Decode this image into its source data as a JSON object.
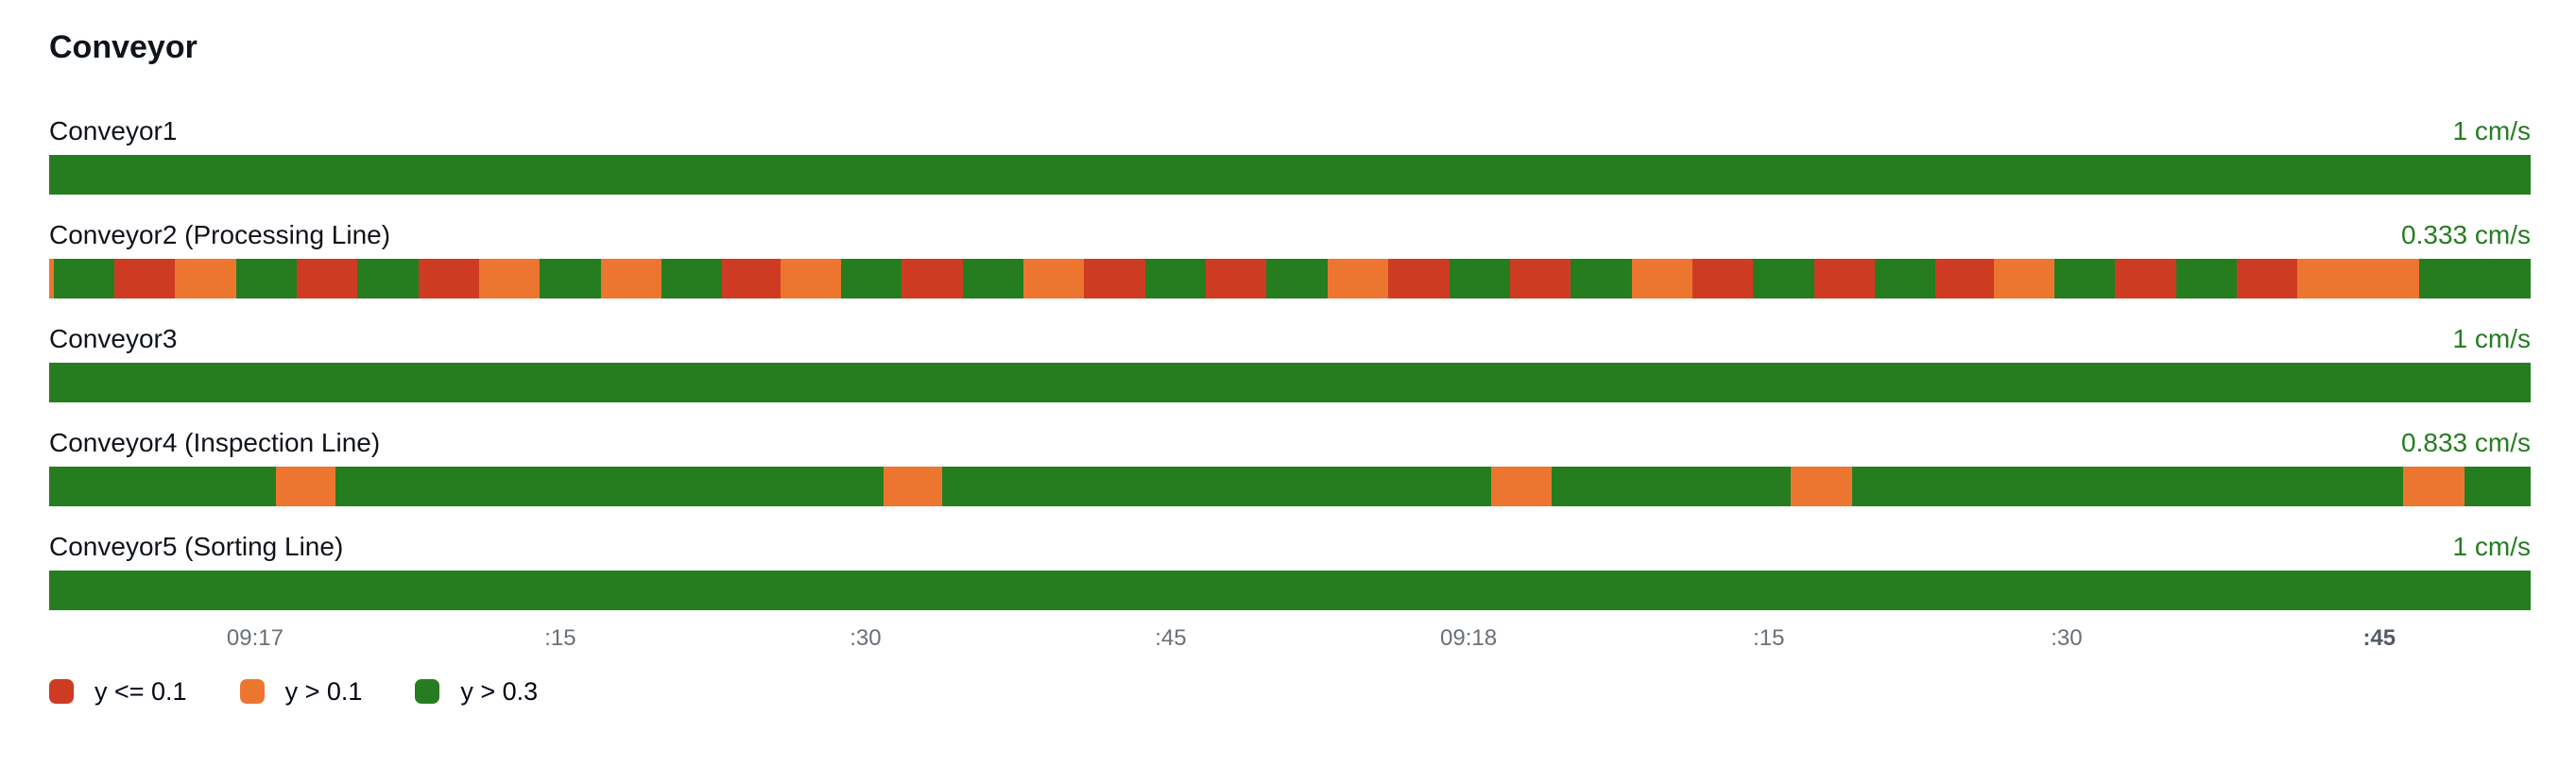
{
  "colors": {
    "green": "#267d20",
    "orange": "#ec7630",
    "red": "#ce3b23",
    "value_text": "#267d20",
    "axis_text": "#687078",
    "title_text": "#0f141a"
  },
  "chart_data": {
    "type": "heatmap",
    "title": "Conveyor",
    "subtitle": "",
    "unit": "cm/s",
    "legend_position": "bottom-left",
    "x_axis": {
      "resolution_seconds": 3,
      "ticks": [
        {
          "label": "09:17",
          "pos": 8.3,
          "bold": false
        },
        {
          "label": ":15",
          "pos": 20.6,
          "bold": false
        },
        {
          "label": ":30",
          "pos": 32.9,
          "bold": false
        },
        {
          "label": ":45",
          "pos": 45.2,
          "bold": false
        },
        {
          "label": "09:18",
          "pos": 57.2,
          "bold": false
        },
        {
          "label": ":15",
          "pos": 69.3,
          "bold": false
        },
        {
          "label": ":30",
          "pos": 81.3,
          "bold": false
        },
        {
          "label": ":45",
          "pos": 93.9,
          "bold": true
        }
      ]
    },
    "thresholds": [
      {
        "label": "y <= 0.1",
        "color": "red",
        "hex": "#ce3b23"
      },
      {
        "label": "y > 0.1",
        "color": "orange",
        "hex": "#ec7630"
      },
      {
        "label": "y > 0.3",
        "color": "green",
        "hex": "#267d20"
      }
    ],
    "rows": [
      {
        "label": "Conveyor1",
        "value": "1 cm/s",
        "segments": [
          {
            "c": "green",
            "w": 40.85
          }
        ]
      },
      {
        "label": "Conveyor2 (Processing Line)",
        "value": "0.333 cm/s",
        "segments": [
          {
            "c": "orange",
            "w": 0.07
          },
          {
            "c": "green",
            "w": 1
          },
          {
            "c": "red",
            "w": 1
          },
          {
            "c": "orange",
            "w": 1
          },
          {
            "c": "green",
            "w": 1
          },
          {
            "c": "red",
            "w": 1
          },
          {
            "c": "green",
            "w": 1
          },
          {
            "c": "red",
            "w": 1
          },
          {
            "c": "orange",
            "w": 1
          },
          {
            "c": "green",
            "w": 1
          },
          {
            "c": "orange",
            "w": 1
          },
          {
            "c": "green",
            "w": 1
          },
          {
            "c": "red",
            "w": 0.95
          },
          {
            "c": "orange",
            "w": 1
          },
          {
            "c": "green",
            "w": 1
          },
          {
            "c": "red",
            "w": 1
          },
          {
            "c": "green",
            "w": 1
          },
          {
            "c": "orange",
            "w": 1
          },
          {
            "c": "red",
            "w": 1
          },
          {
            "c": "green",
            "w": 1
          },
          {
            "c": "red",
            "w": 1
          },
          {
            "c": "green",
            "w": 1
          },
          {
            "c": "orange",
            "w": 1
          },
          {
            "c": "red",
            "w": 1
          },
          {
            "c": "green",
            "w": 1
          },
          {
            "c": "red",
            "w": 1
          },
          {
            "c": "green",
            "w": 1
          },
          {
            "c": "orange",
            "w": 1
          },
          {
            "c": "red",
            "w": 1
          },
          {
            "c": "green",
            "w": 1
          },
          {
            "c": "red",
            "w": 1
          },
          {
            "c": "green",
            "w": 1
          },
          {
            "c": "red",
            "w": 0.95
          },
          {
            "c": "orange",
            "w": 1
          },
          {
            "c": "green",
            "w": 1
          },
          {
            "c": "red",
            "w": 1
          },
          {
            "c": "green",
            "w": 1
          },
          {
            "c": "red",
            "w": 1
          },
          {
            "c": "orange",
            "w": 2
          },
          {
            "c": "green",
            "w": 1.83
          }
        ]
      },
      {
        "label": "Conveyor3",
        "value": "1 cm/s",
        "segments": [
          {
            "c": "green",
            "w": 40.85
          }
        ]
      },
      {
        "label": "Conveyor4 (Inspection Line)",
        "value": "0.833 cm/s",
        "segments": [
          {
            "c": "green",
            "w": 3.73
          },
          {
            "c": "orange",
            "w": 0.98
          },
          {
            "c": "green",
            "w": 9.01
          },
          {
            "c": "orange",
            "w": 0.96
          },
          {
            "c": "green",
            "w": 9.03
          },
          {
            "c": "orange",
            "w": 0.99
          },
          {
            "c": "green",
            "w": 3.93
          },
          {
            "c": "orange",
            "w": 1.01
          },
          {
            "c": "green",
            "w": 9.06
          },
          {
            "c": "orange",
            "w": 1.01
          },
          {
            "c": "green",
            "w": 1.09
          }
        ]
      },
      {
        "label": "Conveyor5 (Sorting Line)",
        "value": "1 cm/s",
        "segments": [
          {
            "c": "green",
            "w": 40.85
          }
        ]
      }
    ]
  }
}
